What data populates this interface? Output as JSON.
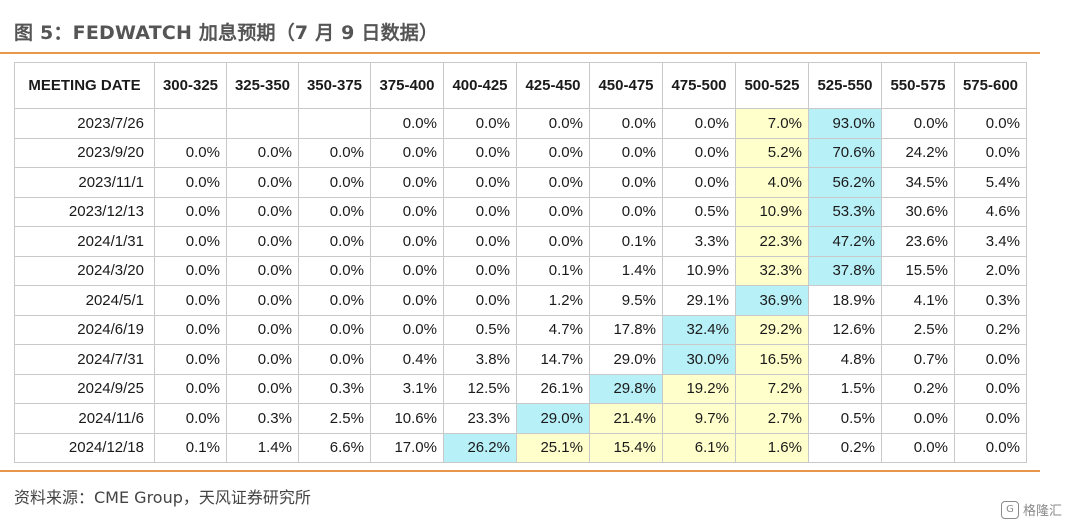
{
  "figure": {
    "title": "图 5：FEDWATCH 加息预期（7 月 9 日数据）",
    "source": "资料来源：CME Group，天风证券研究所",
    "watermark": "格隆汇",
    "watermark_icon": "logo-icon"
  },
  "colors": {
    "rule": "#e8964a",
    "yellow_highlight": "#ffffcc",
    "blue_highlight": "#b8f0f8"
  },
  "chart_data": {
    "type": "table",
    "columns": [
      "MEETING DATE",
      "300-325",
      "325-350",
      "350-375",
      "375-400",
      "400-425",
      "425-450",
      "450-475",
      "475-500",
      "500-525",
      "525-550",
      "550-575",
      "575-600"
    ],
    "rows": [
      {
        "date": "2023/7/26",
        "values": [
          "",
          "",
          "",
          "0.0%",
          "0.0%",
          "0.0%",
          "0.0%",
          "0.0%",
          "7.0%",
          "93.0%",
          "0.0%",
          "0.0%"
        ],
        "yellow": 8,
        "blue": 9
      },
      {
        "date": "2023/9/20",
        "values": [
          "0.0%",
          "0.0%",
          "0.0%",
          "0.0%",
          "0.0%",
          "0.0%",
          "0.0%",
          "0.0%",
          "5.2%",
          "70.6%",
          "24.2%",
          "0.0%"
        ],
        "yellow": 8,
        "blue": 9
      },
      {
        "date": "2023/11/1",
        "values": [
          "0.0%",
          "0.0%",
          "0.0%",
          "0.0%",
          "0.0%",
          "0.0%",
          "0.0%",
          "0.0%",
          "4.0%",
          "56.2%",
          "34.5%",
          "5.4%"
        ],
        "yellow": 8,
        "blue": 9
      },
      {
        "date": "2023/12/13",
        "values": [
          "0.0%",
          "0.0%",
          "0.0%",
          "0.0%",
          "0.0%",
          "0.0%",
          "0.0%",
          "0.5%",
          "10.9%",
          "53.3%",
          "30.6%",
          "4.6%"
        ],
        "yellow": 8,
        "blue": 9
      },
      {
        "date": "2024/1/31",
        "values": [
          "0.0%",
          "0.0%",
          "0.0%",
          "0.0%",
          "0.0%",
          "0.0%",
          "0.1%",
          "3.3%",
          "22.3%",
          "47.2%",
          "23.6%",
          "3.4%"
        ],
        "yellow": 8,
        "blue": 9
      },
      {
        "date": "2024/3/20",
        "values": [
          "0.0%",
          "0.0%",
          "0.0%",
          "0.0%",
          "0.0%",
          "0.1%",
          "1.4%",
          "10.9%",
          "32.3%",
          "37.8%",
          "15.5%",
          "2.0%"
        ],
        "yellow": 8,
        "blue": 9
      },
      {
        "date": "2024/5/1",
        "values": [
          "0.0%",
          "0.0%",
          "0.0%",
          "0.0%",
          "0.0%",
          "1.2%",
          "9.5%",
          "29.1%",
          "36.9%",
          "18.9%",
          "4.1%",
          "0.3%"
        ],
        "yellow": 8,
        "blue": 8
      },
      {
        "date": "2024/6/19",
        "values": [
          "0.0%",
          "0.0%",
          "0.0%",
          "0.0%",
          "0.5%",
          "4.7%",
          "17.8%",
          "32.4%",
          "29.2%",
          "12.6%",
          "2.5%",
          "0.2%"
        ],
        "yellow": 8,
        "blue": 7
      },
      {
        "date": "2024/7/31",
        "values": [
          "0.0%",
          "0.0%",
          "0.0%",
          "0.4%",
          "3.8%",
          "14.7%",
          "29.0%",
          "30.0%",
          "16.5%",
          "4.8%",
          "0.7%",
          "0.0%"
        ],
        "yellow": 8,
        "blue": 7
      },
      {
        "date": "2024/9/25",
        "values": [
          "0.0%",
          "0.0%",
          "0.3%",
          "3.1%",
          "12.5%",
          "26.1%",
          "29.8%",
          "19.2%",
          "7.2%",
          "1.5%",
          "0.2%",
          "0.0%"
        ],
        "yellow": [
          7,
          8
        ],
        "blue": 6
      },
      {
        "date": "2024/11/6",
        "values": [
          "0.0%",
          "0.3%",
          "2.5%",
          "10.6%",
          "23.3%",
          "29.0%",
          "21.4%",
          "9.7%",
          "2.7%",
          "0.5%",
          "0.0%",
          "0.0%"
        ],
        "yellow": [
          6,
          7,
          8
        ],
        "blue": 5
      },
      {
        "date": "2024/12/18",
        "values": [
          "0.1%",
          "1.4%",
          "6.6%",
          "17.0%",
          "26.2%",
          "25.1%",
          "15.4%",
          "6.1%",
          "1.6%",
          "0.2%",
          "0.0%",
          "0.0%"
        ],
        "yellow": [
          5,
          6,
          7,
          8
        ],
        "blue": 4
      }
    ]
  }
}
